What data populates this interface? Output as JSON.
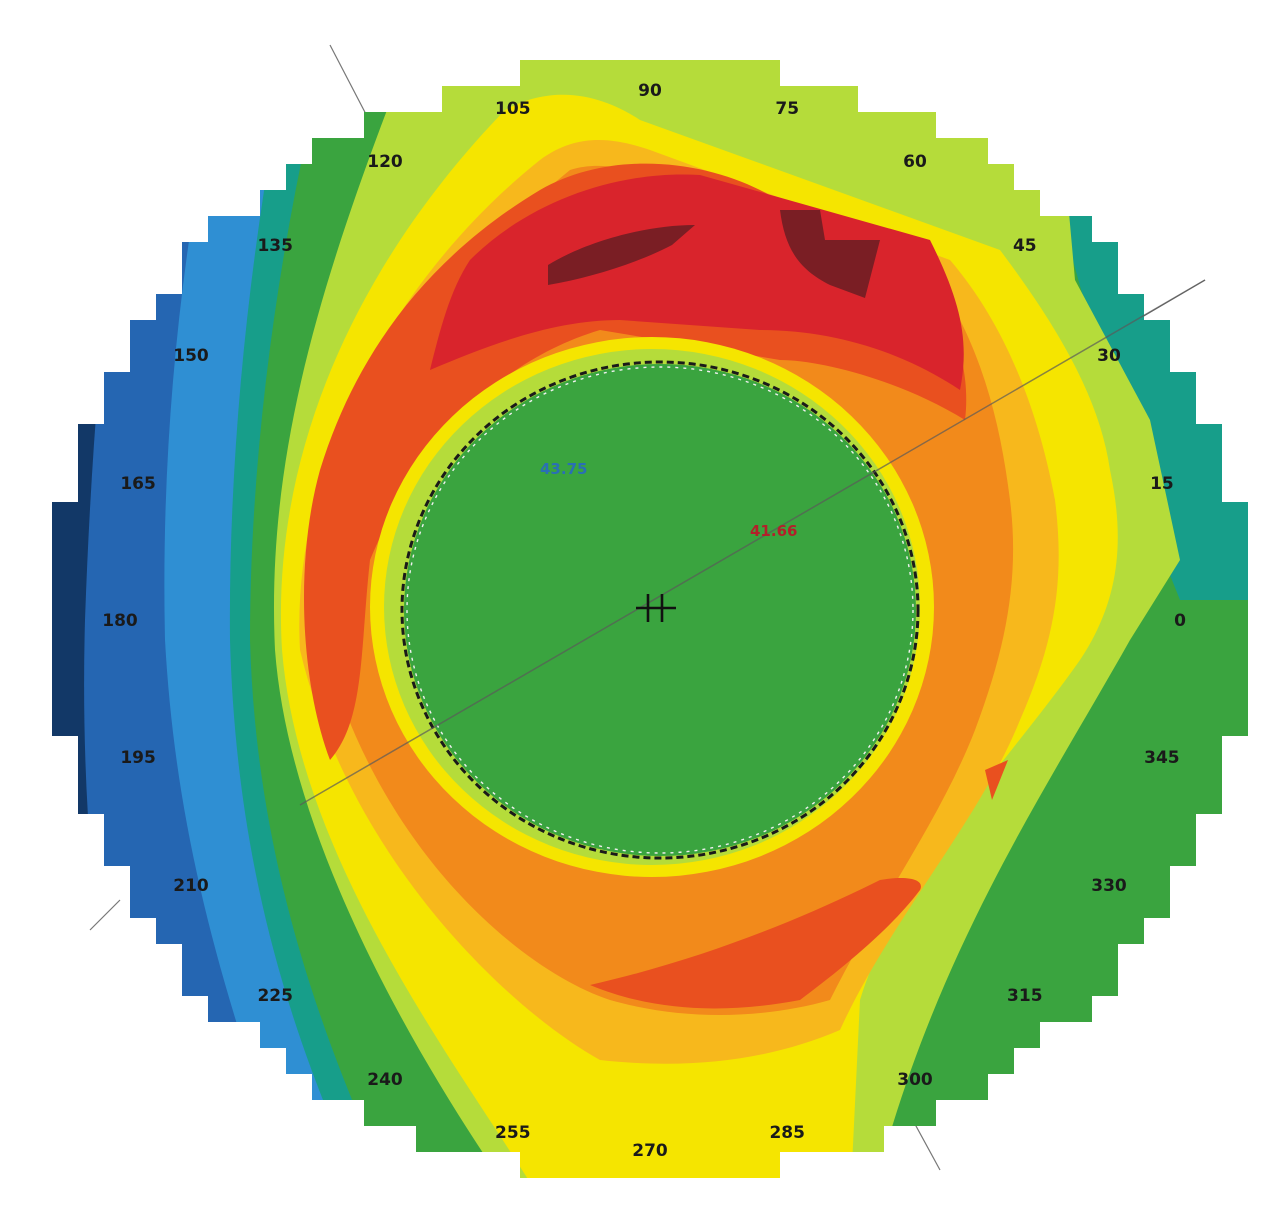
{
  "map": {
    "colors": {
      "darkred": "#7a1e24",
      "red": "#d9242c",
      "redorange": "#e9501f",
      "orange": "#f28a1b",
      "yelloworange": "#f7b81c",
      "yellow": "#f5e500",
      "lime": "#b5dc3a",
      "green": "#3aa43f",
      "teal": "#179e8a",
      "sky": "#2f8fd3",
      "blue": "#2566b2",
      "navy": "#123867"
    },
    "angle_labels": [
      {
        "text": "0",
        "angle": 0
      },
      {
        "text": "15",
        "angle": 15
      },
      {
        "text": "30",
        "angle": 30
      },
      {
        "text": "45",
        "angle": 45
      },
      {
        "text": "60",
        "angle": 60
      },
      {
        "text": "75",
        "angle": 75
      },
      {
        "text": "90",
        "angle": 90
      },
      {
        "text": "105",
        "angle": 105
      },
      {
        "text": "120",
        "angle": 120
      },
      {
        "text": "135",
        "angle": 135
      },
      {
        "text": "150",
        "angle": 150
      },
      {
        "text": "165",
        "angle": 165
      },
      {
        "text": "180",
        "angle": 180
      },
      {
        "text": "195",
        "angle": 195
      },
      {
        "text": "210",
        "angle": 210
      },
      {
        "text": "225",
        "angle": 225
      },
      {
        "text": "240",
        "angle": 240
      },
      {
        "text": "255",
        "angle": 255
      },
      {
        "text": "270",
        "angle": 270
      },
      {
        "text": "285",
        "angle": 285
      },
      {
        "text": "300",
        "angle": 300
      },
      {
        "text": "315",
        "angle": 315
      },
      {
        "text": "330",
        "angle": 330
      },
      {
        "text": "345",
        "angle": 345
      }
    ],
    "value_flat": "43.75",
    "value_steep": "41.66",
    "flat_color": "#2a6fb5",
    "steep_color": "#b3202a",
    "steep_axis_angle": 30
  }
}
